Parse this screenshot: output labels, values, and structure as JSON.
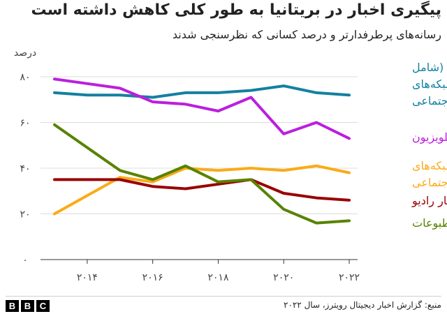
{
  "chart_data": {
    "type": "line",
    "title": "پیگیری اخبار در بریتانیا به طور کلی کاهش داشته است",
    "subtitle": "رسانه‌های پرطرفدارتر و درصد کسانی که نظرسنجی شدند",
    "ylabel": "درصد",
    "ylim": [
      0,
      80
    ],
    "yticks": [
      0,
      20,
      40,
      60,
      80
    ],
    "ytick_labels": [
      "۰",
      "۲۰",
      "۴۰",
      "۶۰",
      "۸۰"
    ],
    "x": [
      2013,
      2014,
      2015,
      2016,
      2017,
      2018,
      2019,
      2020,
      2021,
      2022
    ],
    "xticks": [
      2014,
      2016,
      2018,
      2020,
      2022
    ],
    "xtick_labels": [
      "۲۰۱۴",
      "۲۰۱۶",
      "۲۰۱۸",
      "۲۰۲۰",
      "۲۰۲۲"
    ],
    "grid": "horizontal",
    "legend": "inline-right",
    "series": [
      {
        "name": "آنلاین (شامل شبکه‌های اجتماعی",
        "color": "#1380A1",
        "values": [
          73,
          72,
          72,
          71,
          73,
          73,
          74,
          76,
          73,
          72
        ]
      },
      {
        "name": "تلویزیون",
        "color": "#BB1FDD",
        "values": [
          79,
          77,
          75,
          69,
          68,
          65,
          71,
          55,
          60,
          53
        ]
      },
      {
        "name": "شبکه‌های اجتماعی",
        "color": "#FAAB18",
        "values": [
          20,
          28,
          36,
          34,
          40,
          39,
          40,
          39,
          41,
          38
        ]
      },
      {
        "name": "اخبار رادیو",
        "color": "#990000",
        "values": [
          35,
          35,
          35,
          32,
          31,
          33,
          35,
          29,
          27,
          26
        ]
      },
      {
        "name": "مطبوعات",
        "color": "#588300",
        "values": [
          59,
          49,
          39,
          35,
          41,
          34,
          35,
          22,
          16,
          17
        ]
      }
    ],
    "legend_lines": [
      [
        "آنلاین (شامل",
        "شبکه‌های",
        "اجتماعی"
      ],
      [
        "تلویزیون"
      ],
      [
        "شبکه‌های",
        "اجتماعی"
      ],
      [
        "اخبار رادیو"
      ],
      [
        "مطبوعات"
      ]
    ]
  },
  "footer": {
    "source": "منبع: گزارش اخبار دیجیتال رویترز، سال ۲۰۲۲",
    "logo_letters": [
      "B",
      "B",
      "C"
    ]
  }
}
